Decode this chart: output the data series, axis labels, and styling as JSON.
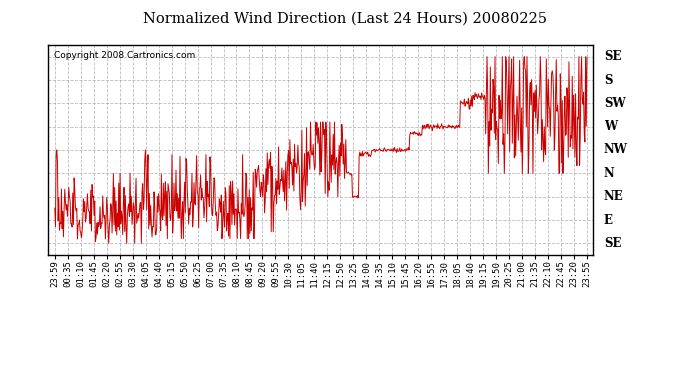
{
  "title": "Normalized Wind Direction (Last 24 Hours) 20080225",
  "copyright_text": "Copyright 2008 Cartronics.com",
  "line_color": "#cc0000",
  "background_color": "#ffffff",
  "grid_color": "#aaaaaa",
  "y_labels": [
    "SE",
    "E",
    "NE",
    "N",
    "NW",
    "W",
    "SW",
    "S",
    "SE"
  ],
  "x_labels": [
    "23:59",
    "00:35",
    "01:10",
    "01:45",
    "02:20",
    "02:55",
    "03:30",
    "04:05",
    "04:40",
    "05:15",
    "05:50",
    "06:25",
    "07:00",
    "07:35",
    "08:10",
    "08:45",
    "09:20",
    "09:55",
    "10:30",
    "11:05",
    "11:40",
    "12:15",
    "12:50",
    "13:25",
    "14:00",
    "14:35",
    "15:10",
    "15:45",
    "16:20",
    "16:55",
    "17:30",
    "18:05",
    "18:40",
    "19:15",
    "19:50",
    "20:25",
    "21:00",
    "21:35",
    "22:10",
    "22:45",
    "23:20",
    "23:55"
  ],
  "figsize": [
    6.9,
    3.75
  ],
  "dpi": 100
}
